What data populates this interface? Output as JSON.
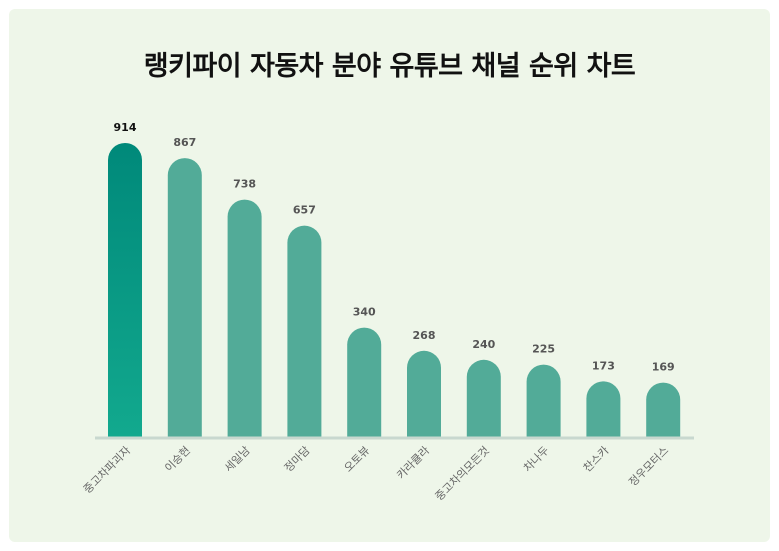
{
  "title": "랭키파이 자동차 분야 유튜브 채널 순위 차트",
  "chart_data": {
    "type": "bar",
    "categories": [
      "중고차파괴자",
      "이승현",
      "세일남",
      "정마담",
      "오토뷰",
      "카라큘라",
      "중고차의모든것",
      "차나두",
      "찬스카",
      "정우모터스"
    ],
    "values": [
      914,
      867,
      738,
      657,
      340,
      268,
      240,
      225,
      173,
      169
    ],
    "title": "랭키파이 자동차 분야 유튜브 채널 순위 차트",
    "xlabel": "",
    "ylabel": "",
    "ylim": [
      0,
      914
    ],
    "grid": false,
    "legend": "none",
    "colors": {
      "highlight_top": "#00897a",
      "highlight_bottom": "#12a98e",
      "bar": "#52ab98",
      "baseline": "#c8d8cf"
    }
  }
}
